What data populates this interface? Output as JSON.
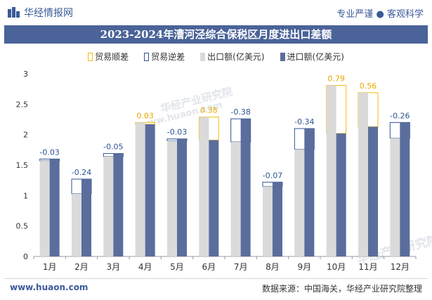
{
  "header": {
    "brand_name": "华经情报网",
    "tagline": "专业严谨 ● 客观科学"
  },
  "watermarks": [
    "华经产业研究院",
    "www.huaon.com",
    "华经产业研究院"
  ],
  "footer": {
    "site": "www.huaon.com",
    "source": "数据来源：中国海关，华经产业研究院整理"
  },
  "colors": {
    "header_bar": "#4a6398",
    "export": "#dadada",
    "import": "#5a6d9c",
    "surplus": "#f3be12",
    "deficit": "#2f5394",
    "surplus_label": "#e6a900",
    "deficit_label": "#2f5394"
  },
  "chart_data": {
    "type": "bar",
    "title": "2023-2024年漕河泾综合保税区月度进出口差额",
    "categories": [
      "1月",
      "2月",
      "3月",
      "4月",
      "5月",
      "6月",
      "7月",
      "8月",
      "9月",
      "10月",
      "11月",
      "12月"
    ],
    "series": [
      {
        "name": "出口额(亿美元)",
        "values": [
          1.57,
          1.03,
          1.64,
          2.2,
          1.9,
          2.29,
          1.88,
          1.15,
          1.76,
          2.81,
          2.69,
          1.94
        ]
      },
      {
        "name": "进口额(亿美元)",
        "values": [
          1.6,
          1.27,
          1.69,
          2.17,
          1.93,
          1.91,
          2.26,
          1.22,
          2.1,
          2.02,
          2.13,
          2.2
        ]
      }
    ],
    "balance": {
      "surplus_name": "贸易顺差",
      "deficit_name": "贸易逆差",
      "values": [
        -0.03,
        -0.24,
        -0.05,
        0.03,
        -0.03,
        0.38,
        -0.38,
        -0.07,
        -0.34,
        0.79,
        0.56,
        -0.26
      ],
      "labels": [
        "-0.03",
        "-0.24",
        "-0.05",
        "0.03",
        "-0.03",
        "0.38",
        "-0.38",
        "-0.07",
        "-0.34",
        "0.79",
        "0.56",
        "-0.26"
      ]
    },
    "ylim": [
      0,
      3
    ],
    "yticks": [
      "0",
      "0.5",
      "1",
      "1.5",
      "2",
      "2.5",
      "3"
    ],
    "legend_position": "top-center",
    "grid": false
  }
}
